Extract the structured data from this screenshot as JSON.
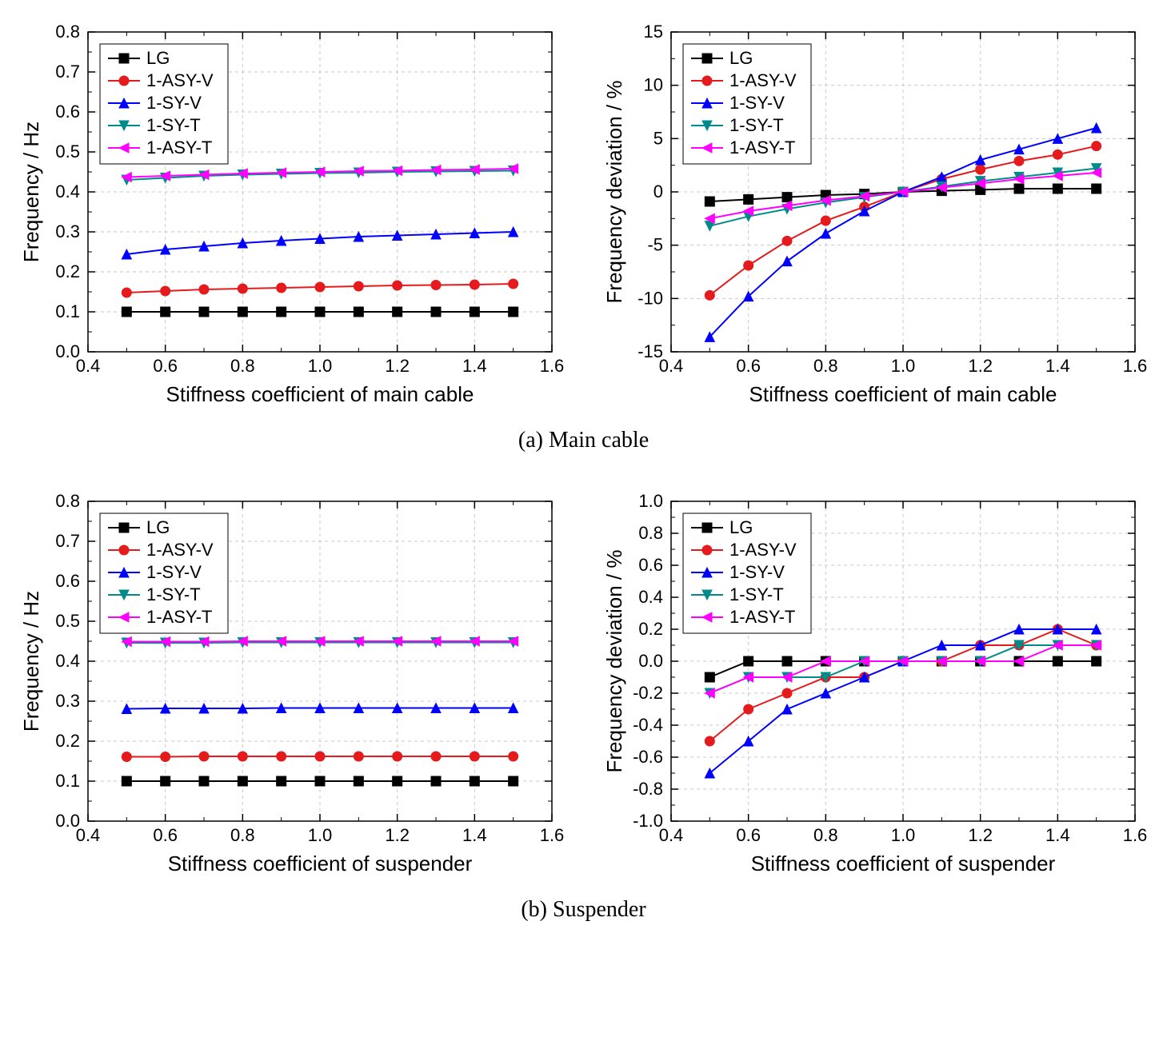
{
  "global": {
    "background": "#ffffff",
    "grid_color": "#c8c8c8",
    "axis_color": "#000000",
    "tick_font_size": 22,
    "axis_title_font_size": 26,
    "legend_font_size": 22,
    "line_width": 2,
    "marker_size": 6,
    "font_family_axes": "Arial",
    "font_family_captions": "Times New Roman"
  },
  "series_meta": {
    "LG": {
      "label": "LG",
      "color": "#000000",
      "marker": "square"
    },
    "1-ASY-V": {
      "label": "1-ASY-V",
      "color": "#e41a1c",
      "marker": "circle"
    },
    "1-SY-V": {
      "label": "1-SY-V",
      "color": "#0000ff",
      "marker": "triangle-up"
    },
    "1-SY-T": {
      "label": "1-SY-T",
      "color": "#008b8b",
      "marker": "triangle-down"
    },
    "1-ASY-T": {
      "label": "1-ASY-T",
      "color": "#ff00ff",
      "marker": "triangle-left"
    }
  },
  "captions": {
    "a": "(a) Main cable",
    "b": "(b) Suspender"
  },
  "panels": {
    "a_left": {
      "type": "line-marker",
      "xlabel": "Stiffness coefficient of main cable",
      "ylabel": "Frequency / Hz",
      "xlim": [
        0.4,
        1.6
      ],
      "ylim": [
        0.0,
        0.8
      ],
      "xticks": [
        0.4,
        0.6,
        0.8,
        1.0,
        1.2,
        1.4,
        1.6
      ],
      "yticks": [
        0.0,
        0.1,
        0.2,
        0.3,
        0.4,
        0.5,
        0.6,
        0.7,
        0.8
      ],
      "x": [
        0.5,
        0.6,
        0.7,
        0.8,
        0.9,
        1.0,
        1.1,
        1.2,
        1.3,
        1.4,
        1.5
      ],
      "legend_pos": "top-left",
      "series": {
        "LG": [
          0.1,
          0.1,
          0.1,
          0.1,
          0.1,
          0.1,
          0.1,
          0.1,
          0.1,
          0.1,
          0.1
        ],
        "1-ASY-V": [
          0.148,
          0.152,
          0.156,
          0.158,
          0.16,
          0.162,
          0.164,
          0.166,
          0.167,
          0.168,
          0.17
        ],
        "1-SY-V": [
          0.244,
          0.256,
          0.264,
          0.272,
          0.278,
          0.283,
          0.288,
          0.291,
          0.294,
          0.297,
          0.3
        ],
        "1-SY-T": [
          0.43,
          0.435,
          0.44,
          0.443,
          0.445,
          0.447,
          0.448,
          0.45,
          0.451,
          0.452,
          0.453
        ],
        "1-ASY-T": [
          0.437,
          0.44,
          0.443,
          0.446,
          0.448,
          0.45,
          0.452,
          0.453,
          0.455,
          0.456,
          0.458
        ]
      }
    },
    "a_right": {
      "type": "line-marker",
      "xlabel": "Stiffness coefficient of main cable",
      "ylabel": "Frequency deviation / %",
      "xlim": [
        0.4,
        1.6
      ],
      "ylim": [
        -15,
        15
      ],
      "xticks": [
        0.4,
        0.6,
        0.8,
        1.0,
        1.2,
        1.4,
        1.6
      ],
      "yticks": [
        -15,
        -10,
        -5,
        0,
        5,
        10,
        15
      ],
      "x": [
        0.5,
        0.6,
        0.7,
        0.8,
        0.9,
        1.0,
        1.1,
        1.2,
        1.3,
        1.4,
        1.5
      ],
      "legend_pos": "top-left",
      "series": {
        "LG": [
          -0.9,
          -0.7,
          -0.5,
          -0.3,
          -0.2,
          0.0,
          0.1,
          0.2,
          0.3,
          0.3,
          0.3
        ],
        "1-ASY-V": [
          -9.7,
          -6.9,
          -4.6,
          -2.7,
          -1.4,
          0.0,
          1.2,
          2.1,
          2.9,
          3.5,
          4.3
        ],
        "1-SY-V": [
          -13.6,
          -9.8,
          -6.5,
          -3.9,
          -1.8,
          0.0,
          1.4,
          3.0,
          4.0,
          5.0,
          6.0
        ],
        "1-SY-T": [
          -3.2,
          -2.3,
          -1.6,
          -1.0,
          -0.5,
          0.0,
          0.5,
          1.0,
          1.4,
          1.8,
          2.2
        ],
        "1-ASY-T": [
          -2.5,
          -1.8,
          -1.3,
          -0.8,
          -0.4,
          0.0,
          0.4,
          0.8,
          1.2,
          1.5,
          1.8
        ]
      }
    },
    "b_left": {
      "type": "line-marker",
      "xlabel": "Stiffness coefficient of suspender",
      "ylabel": "Frequency / Hz",
      "xlim": [
        0.4,
        1.6
      ],
      "ylim": [
        0.0,
        0.8
      ],
      "xticks": [
        0.4,
        0.6,
        0.8,
        1.0,
        1.2,
        1.4,
        1.6
      ],
      "yticks": [
        0.0,
        0.1,
        0.2,
        0.3,
        0.4,
        0.5,
        0.6,
        0.7,
        0.8
      ],
      "x": [
        0.5,
        0.6,
        0.7,
        0.8,
        0.9,
        1.0,
        1.1,
        1.2,
        1.3,
        1.4,
        1.5
      ],
      "legend_pos": "top-left",
      "series": {
        "LG": [
          0.1,
          0.1,
          0.1,
          0.1,
          0.1,
          0.1,
          0.1,
          0.1,
          0.1,
          0.1,
          0.1
        ],
        "1-ASY-V": [
          0.161,
          0.161,
          0.162,
          0.162,
          0.162,
          0.162,
          0.162,
          0.162,
          0.162,
          0.162,
          0.162
        ],
        "1-SY-V": [
          0.281,
          0.282,
          0.282,
          0.282,
          0.283,
          0.283,
          0.283,
          0.283,
          0.283,
          0.283,
          0.283
        ],
        "1-SY-T": [
          0.446,
          0.446,
          0.446,
          0.447,
          0.447,
          0.447,
          0.447,
          0.447,
          0.447,
          0.447,
          0.447
        ],
        "1-ASY-T": [
          0.449,
          0.449,
          0.449,
          0.45,
          0.45,
          0.45,
          0.45,
          0.45,
          0.45,
          0.45,
          0.45
        ]
      }
    },
    "b_right": {
      "type": "line-marker",
      "xlabel": "Stiffness coefficient of suspender",
      "ylabel": "Frequency deviation / %",
      "xlim": [
        0.4,
        1.6
      ],
      "ylim": [
        -1.0,
        1.0
      ],
      "xticks": [
        0.4,
        0.6,
        0.8,
        1.0,
        1.2,
        1.4,
        1.6
      ],
      "yticks": [
        -1.0,
        -0.8,
        -0.6,
        -0.4,
        -0.2,
        0.0,
        0.2,
        0.4,
        0.6,
        0.8,
        1.0
      ],
      "x": [
        0.5,
        0.6,
        0.7,
        0.8,
        0.9,
        1.0,
        1.1,
        1.2,
        1.3,
        1.4,
        1.5
      ],
      "legend_pos": "top-left",
      "series": {
        "LG": [
          -0.1,
          0.0,
          0.0,
          0.0,
          0.0,
          0.0,
          0.0,
          0.0,
          0.0,
          0.0,
          0.0
        ],
        "1-ASY-V": [
          -0.5,
          -0.3,
          -0.2,
          -0.1,
          -0.1,
          0.0,
          0.0,
          0.1,
          0.1,
          0.2,
          0.1
        ],
        "1-SY-V": [
          -0.7,
          -0.5,
          -0.3,
          -0.2,
          -0.1,
          0.0,
          0.1,
          0.1,
          0.2,
          0.2,
          0.2
        ],
        "1-SY-T": [
          -0.2,
          -0.1,
          -0.1,
          -0.1,
          0.0,
          0.0,
          0.0,
          0.0,
          0.1,
          0.1,
          0.1
        ],
        "1-ASY-T": [
          -0.2,
          -0.1,
          -0.1,
          0.0,
          0.0,
          0.0,
          0.0,
          0.0,
          0.0,
          0.1,
          0.1
        ]
      }
    }
  }
}
